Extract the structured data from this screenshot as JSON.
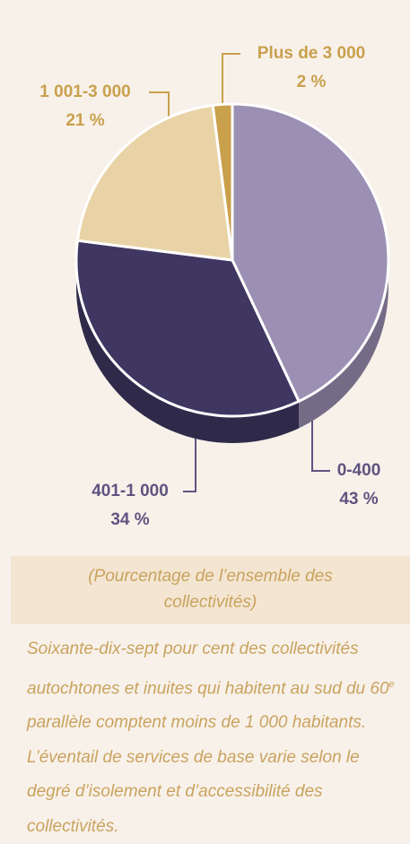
{
  "chart_data": {
    "type": "pie",
    "categories": [
      "0-400",
      "401-1 000",
      "1 001-3 000",
      "Plus de 3 000"
    ],
    "values": [
      43,
      34,
      21,
      2
    ],
    "value_labels": [
      "43 %",
      "34 %",
      "21 %",
      "2 %"
    ],
    "colors": [
      "#9b90b4",
      "#3f3662",
      "#e9d3a6",
      "#c9a04c"
    ],
    "caption": "(Pourcentage de l’ensemble des collectivités)",
    "note": [
      "Soixante-dix-sept pour cent des collectivités autochtones et inuites qui habitent au sud du 60",
      "e",
      " parallèle comptent moins de 1 000 habitants. L’éventail de services de base varie selon le degré d’isolement et d’accessibilité des collectivités."
    ]
  }
}
